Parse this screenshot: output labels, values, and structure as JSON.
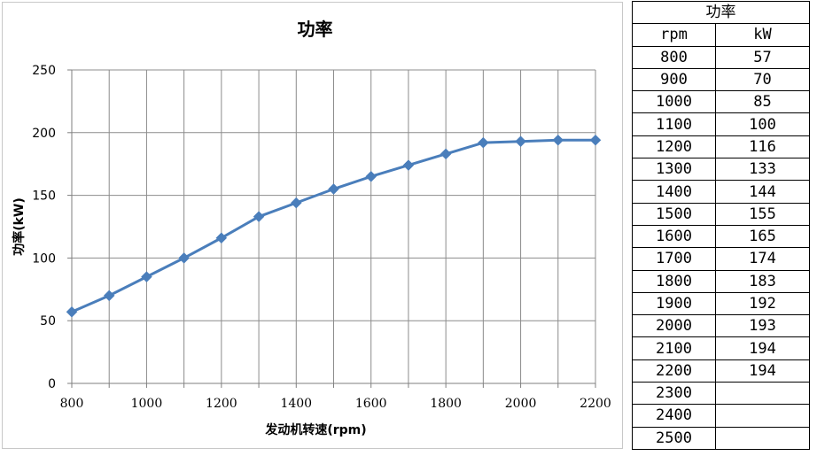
{
  "chart_data": {
    "type": "line",
    "title": "功率",
    "xlabel": "发动机转速(rpm)",
    "ylabel": "功率(kW)",
    "x_ticks": [
      800,
      1000,
      1200,
      1400,
      1600,
      1800,
      2000,
      2200
    ],
    "y_ticks": [
      0,
      50,
      100,
      150,
      200,
      250
    ],
    "xlim": [
      800,
      2200
    ],
    "ylim": [
      0,
      250
    ],
    "grid": true,
    "legend": "none",
    "series": [
      {
        "color": "#4a7ebb",
        "marker": "diamond",
        "x": [
          800,
          900,
          1000,
          1100,
          1200,
          1300,
          1400,
          1500,
          1600,
          1700,
          1800,
          1900,
          2000,
          2100,
          2200
        ],
        "y": [
          57,
          70,
          85,
          100,
          116,
          133,
          144,
          155,
          165,
          174,
          183,
          192,
          193,
          194,
          194
        ]
      }
    ]
  },
  "table": {
    "title": "功率",
    "headers": [
      "rpm",
      "kW"
    ],
    "rows": [
      [
        "800",
        "57"
      ],
      [
        "900",
        "70"
      ],
      [
        "1000",
        "85"
      ],
      [
        "1100",
        "100"
      ],
      [
        "1200",
        "116"
      ],
      [
        "1300",
        "133"
      ],
      [
        "1400",
        "144"
      ],
      [
        "1500",
        "155"
      ],
      [
        "1600",
        "165"
      ],
      [
        "1700",
        "174"
      ],
      [
        "1800",
        "183"
      ],
      [
        "1900",
        "192"
      ],
      [
        "2000",
        "193"
      ],
      [
        "2100",
        "194"
      ],
      [
        "2200",
        "194"
      ],
      [
        "2300",
        ""
      ],
      [
        "2400",
        ""
      ],
      [
        "2500",
        ""
      ]
    ]
  }
}
